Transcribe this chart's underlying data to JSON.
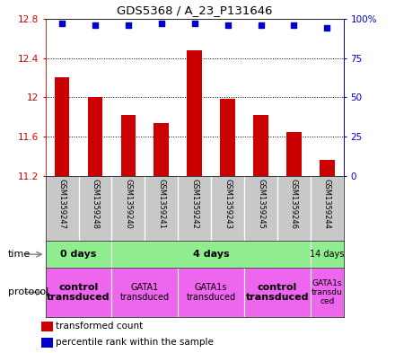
{
  "title": "GDS5368 / A_23_P131646",
  "samples": [
    "GSM1359247",
    "GSM1359248",
    "GSM1359240",
    "GSM1359241",
    "GSM1359242",
    "GSM1359243",
    "GSM1359245",
    "GSM1359246",
    "GSM1359244"
  ],
  "transformed_counts": [
    12.2,
    12.0,
    11.82,
    11.74,
    12.48,
    11.98,
    11.82,
    11.65,
    11.36
  ],
  "percentile_ranks": [
    97,
    96,
    96,
    97,
    97,
    96,
    96,
    96,
    94
  ],
  "ylim_left": [
    11.2,
    12.8
  ],
  "ylim_right": [
    0,
    100
  ],
  "yticks_left": [
    11.2,
    11.6,
    12.0,
    12.4,
    12.8
  ],
  "ytick_labels_left": [
    "11.2",
    "11.6",
    "12",
    "12.4",
    "12.8"
  ],
  "yticks_right": [
    0,
    25,
    50,
    75,
    100
  ],
  "ytick_labels_right": [
    "0",
    "25",
    "50",
    "75",
    "100%"
  ],
  "bar_color": "#cc0000",
  "dot_color": "#0000cc",
  "bar_bottom": 11.2,
  "sample_bg": "#c8c8c8",
  "time_groups": [
    {
      "label": "0 days",
      "start": 0,
      "end": 2,
      "color": "#90EE90",
      "fontsize": 8,
      "bold": true
    },
    {
      "label": "4 days",
      "start": 2,
      "end": 8,
      "color": "#90EE90",
      "fontsize": 8,
      "bold": true
    },
    {
      "label": "14 days",
      "start": 8,
      "end": 9,
      "color": "#90EE90",
      "fontsize": 7,
      "bold": false
    }
  ],
  "protocol_groups": [
    {
      "label": "control\ntransduced",
      "start": 0,
      "end": 2,
      "color": "#EE66EE",
      "bold": true,
      "fontsize": 8
    },
    {
      "label": "GATA1\ntransduced",
      "start": 2,
      "end": 4,
      "color": "#EE66EE",
      "bold": false,
      "fontsize": 7
    },
    {
      "label": "GATA1s\ntransduced",
      "start": 4,
      "end": 6,
      "color": "#EE66EE",
      "bold": false,
      "fontsize": 7
    },
    {
      "label": "control\ntransduced",
      "start": 6,
      "end": 8,
      "color": "#EE66EE",
      "bold": true,
      "fontsize": 8
    },
    {
      "label": "GATA1s\ntransdu\nced",
      "start": 8,
      "end": 9,
      "color": "#EE66EE",
      "bold": false,
      "fontsize": 6.5
    }
  ],
  "legend_items": [
    {
      "color": "#cc0000",
      "label": "transformed count"
    },
    {
      "color": "#0000cc",
      "label": "percentile rank within the sample"
    }
  ]
}
